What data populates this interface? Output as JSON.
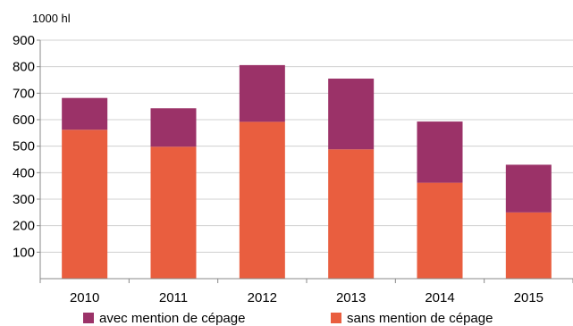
{
  "chart_data": {
    "type": "bar",
    "stacked": true,
    "ylabel": "1000 hl",
    "categories": [
      "2010",
      "2011",
      "2012",
      "2013",
      "2014",
      "2015"
    ],
    "series": [
      {
        "name": "sans mention de cépage",
        "color": "#E95E3F",
        "values": [
          562,
          498,
          592,
          488,
          362,
          250
        ]
      },
      {
        "name": "avec mention de cépage",
        "color": "#9B3268",
        "values": [
          120,
          145,
          214,
          267,
          231,
          180
        ]
      }
    ],
    "ylim": [
      0,
      900
    ],
    "yticks": [
      100,
      200,
      300,
      400,
      500,
      600,
      700,
      800,
      900
    ],
    "grid": true,
    "legend_position": "bottom",
    "legend_order": [
      "avec mention de cépage",
      "sans mention de cépage"
    ]
  }
}
